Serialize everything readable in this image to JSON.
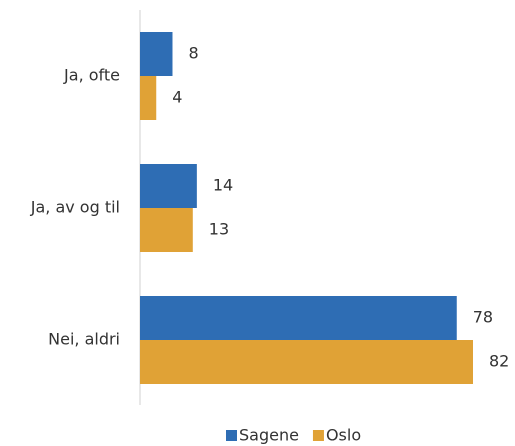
{
  "chart_data": {
    "type": "hbar",
    "categories": [
      "Ja, ofte",
      "Ja, av og til",
      "Nei, aldri"
    ],
    "series": [
      {
        "name": "Sagene",
        "color": "#2e6db4",
        "values": [
          8,
          14,
          78
        ]
      },
      {
        "name": "Oslo",
        "color": "#e0a236",
        "values": [
          4,
          13,
          82
        ]
      }
    ],
    "legend": "bottom"
  }
}
